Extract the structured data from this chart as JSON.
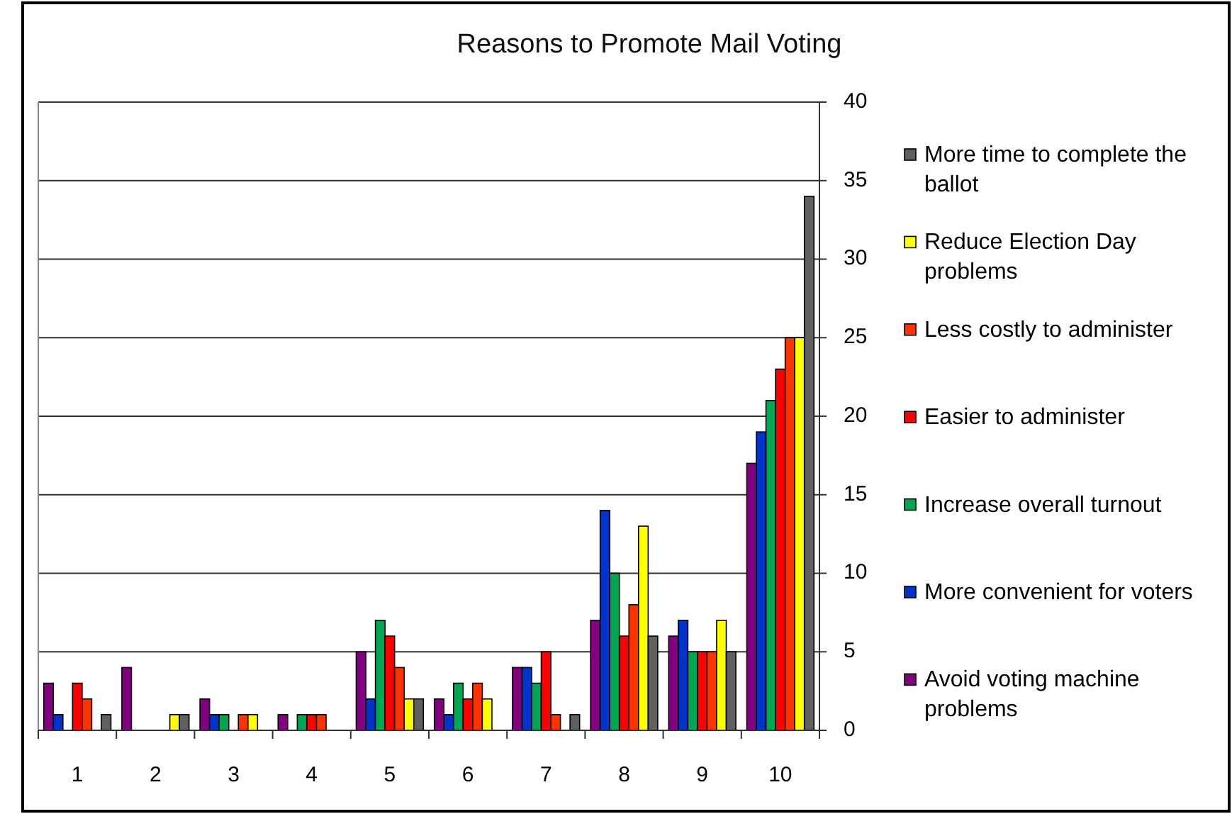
{
  "chart_data": {
    "type": "bar",
    "title": "Reasons to Promote Mail Voting",
    "categories": [
      "1",
      "2",
      "3",
      "4",
      "5",
      "6",
      "7",
      "8",
      "9",
      "10"
    ],
    "series": [
      {
        "name": "Avoid voting machine problems",
        "color": "#800080",
        "values": [
          3,
          4,
          2,
          1,
          5,
          2,
          4,
          7,
          6,
          17
        ]
      },
      {
        "name": "More convenient for voters",
        "color": "#0033cc",
        "values": [
          1,
          0,
          1,
          0,
          2,
          1,
          4,
          14,
          7,
          19
        ]
      },
      {
        "name": "Increase overall turnout",
        "color": "#00a651",
        "values": [
          0,
          0,
          1,
          1,
          7,
          3,
          3,
          10,
          5,
          21
        ]
      },
      {
        "name": "Easier to administer",
        "color": "#ff0000",
        "values": [
          3,
          0,
          0,
          1,
          6,
          2,
          5,
          6,
          5,
          23
        ]
      },
      {
        "name": "Less costly to administer",
        "color": "#ff3300",
        "values": [
          2,
          0,
          1,
          1,
          4,
          3,
          1,
          8,
          5,
          25
        ]
      },
      {
        "name": "Reduce Election Day problems",
        "color": "#ffff00",
        "values": [
          0,
          1,
          1,
          0,
          2,
          2,
          0,
          13,
          7,
          25
        ]
      },
      {
        "name": "More time to complete the ballot",
        "color": "#606060",
        "values": [
          1,
          1,
          0,
          0,
          2,
          0,
          1,
          6,
          5,
          34
        ]
      }
    ],
    "ylim": [
      0,
      40
    ],
    "yticks": [
      0,
      5,
      10,
      15,
      20,
      25,
      30,
      35,
      40
    ],
    "grid": "y",
    "legend": "right"
  }
}
